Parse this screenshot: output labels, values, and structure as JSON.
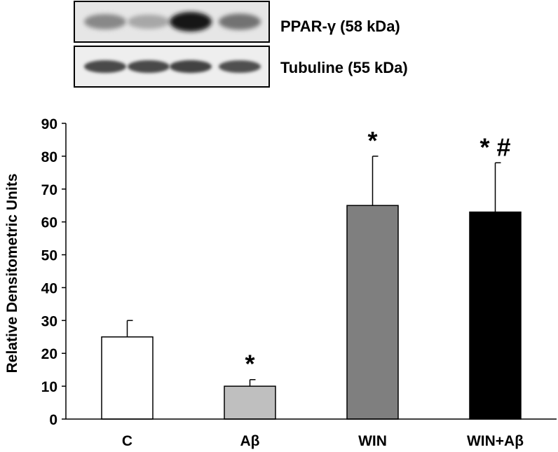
{
  "blot": {
    "panels": [
      {
        "label": "PPAR-γ (58 kDa)",
        "intensities": [
          0.45,
          0.3,
          1.0,
          0.55
        ]
      },
      {
        "label": "Tubuline (55 kDa)",
        "intensities": [
          0.75,
          0.75,
          0.78,
          0.72
        ]
      }
    ]
  },
  "chart_data": {
    "type": "bar",
    "ylabel": "Relative Densitometric Units",
    "xlabel": "",
    "ylim": [
      0,
      90
    ],
    "yticks": [
      0,
      10,
      20,
      30,
      40,
      50,
      60,
      70,
      80,
      90
    ],
    "categories": [
      "C",
      "Aβ",
      "WIN",
      "WIN+Aβ"
    ],
    "values": [
      25,
      10,
      65,
      63
    ],
    "errors": [
      5,
      2,
      15,
      15
    ],
    "annotations": [
      "",
      "*",
      "*",
      "* #"
    ],
    "colors": [
      "#ffffff",
      "#bfbfbf",
      "#7f7f7f",
      "#000000"
    ],
    "grid": false
  }
}
